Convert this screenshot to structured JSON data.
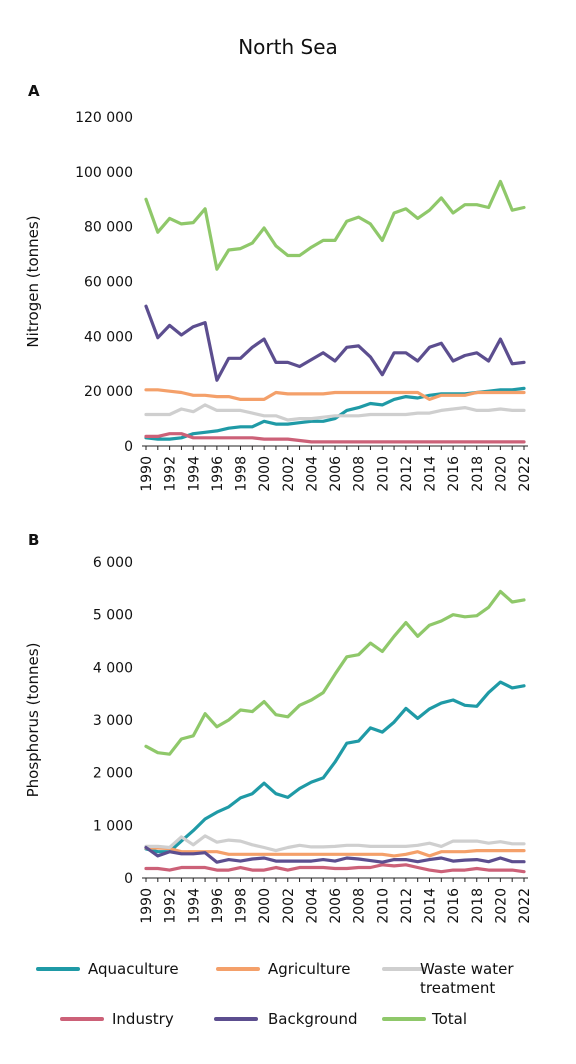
{
  "figure": {
    "title": "North Sea",
    "legend": [
      {
        "key": "aquaculture",
        "lines": [
          "Aquaculture"
        ],
        "color": "#1f9aa6"
      },
      {
        "key": "agriculture",
        "lines": [
          "Agriculture"
        ],
        "color": "#f4a06a"
      },
      {
        "key": "wastewater",
        "lines": [
          "Waste water",
          "treatment"
        ],
        "color": "#cfcfcf"
      },
      {
        "key": "industry",
        "lines": [
          "Industry"
        ],
        "color": "#cc6178"
      },
      {
        "key": "background",
        "lines": [
          "Background"
        ],
        "color": "#5c4e8f"
      },
      {
        "key": "total",
        "lines": [
          "Total"
        ],
        "color": "#8fc86a"
      }
    ]
  },
  "chart_data": [
    {
      "panel": "A",
      "type": "line",
      "ylabel": "Nitrogen (tonnes)",
      "ylim": [
        0,
        120000
      ],
      "yticks": [
        0,
        20000,
        40000,
        60000,
        80000,
        100000,
        120000
      ],
      "ytick_labels": [
        "0",
        "20 000",
        "40 000",
        "60 000",
        "80 000",
        "100 000",
        "120 000"
      ],
      "x": [
        1990,
        1991,
        1992,
        1993,
        1994,
        1995,
        1996,
        1997,
        1998,
        1999,
        2000,
        2001,
        2002,
        2003,
        2004,
        2005,
        2006,
        2007,
        2008,
        2009,
        2010,
        2011,
        2012,
        2013,
        2014,
        2015,
        2016,
        2017,
        2018,
        2019,
        2020,
        2021,
        2022
      ],
      "xtick_labels": [
        "1990",
        "1992",
        "1994",
        "1996",
        "1998",
        "2000",
        "2002",
        "2004",
        "2006",
        "2008",
        "2010",
        "2012",
        "2014",
        "2016",
        "2018",
        "2020",
        "2022"
      ],
      "series": [
        {
          "key": "aquaculture",
          "values": [
            3000,
            2500,
            2500,
            3000,
            4500,
            5000,
            5500,
            6500,
            7000,
            7000,
            9000,
            8000,
            8000,
            8500,
            9000,
            9000,
            10000,
            13000,
            14000,
            15500,
            15000,
            17000,
            18000,
            17500,
            18500,
            19000,
            19000,
            19000,
            19500,
            20000,
            20500,
            20500,
            21000
          ]
        },
        {
          "key": "agriculture",
          "values": [
            20500,
            20500,
            20000,
            19500,
            18500,
            18500,
            18000,
            18000,
            17000,
            17000,
            17000,
            19500,
            19000,
            19000,
            19000,
            19000,
            19500,
            19500,
            19500,
            19500,
            19500,
            19500,
            19500,
            19500,
            17000,
            18500,
            18500,
            18500,
            19500,
            19500,
            19500,
            19500,
            19500
          ]
        },
        {
          "key": "wastewater",
          "values": [
            11500,
            11500,
            11500,
            13500,
            12500,
            15000,
            13000,
            13000,
            13000,
            12000,
            11000,
            11000,
            9500,
            10000,
            10000,
            10500,
            11000,
            11000,
            11000,
            11500,
            11500,
            11500,
            11500,
            12000,
            12000,
            13000,
            13500,
            14000,
            13000,
            13000,
            13500,
            13000,
            13000
          ]
        },
        {
          "key": "industry",
          "values": [
            3500,
            3500,
            4500,
            4500,
            3000,
            3000,
            3000,
            3000,
            3000,
            3000,
            2500,
            2500,
            2500,
            2000,
            1500,
            1500,
            1500,
            1500,
            1500,
            1500,
            1500,
            1500,
            1500,
            1500,
            1500,
            1500,
            1500,
            1500,
            1500,
            1500,
            1500,
            1500,
            1500
          ]
        },
        {
          "key": "background",
          "values": [
            51000,
            39500,
            44000,
            40500,
            43500,
            45000,
            24000,
            32000,
            32000,
            36000,
            39000,
            30500,
            30500,
            29000,
            31500,
            34000,
            31000,
            36000,
            36500,
            32500,
            26000,
            34000,
            34000,
            31000,
            36000,
            37500,
            31000,
            33000,
            34000,
            31000,
            39000,
            30000,
            30500
          ]
        },
        {
          "key": "total",
          "values": [
            90000,
            78000,
            83000,
            81000,
            81500,
            86500,
            64500,
            71500,
            72000,
            74000,
            79500,
            73000,
            69500,
            69500,
            72500,
            75000,
            75000,
            82000,
            83500,
            81000,
            75000,
            85000,
            86500,
            83000,
            86000,
            90500,
            85000,
            88000,
            88000,
            87000,
            96500,
            86000,
            87000
          ]
        }
      ]
    },
    {
      "panel": "B",
      "type": "line",
      "ylabel": "Phosphorus (tonnes)",
      "ylim": [
        0,
        6000
      ],
      "yticks": [
        0,
        1000,
        2000,
        3000,
        4000,
        5000,
        6000
      ],
      "ytick_labels": [
        "0",
        "1 000",
        "2 000",
        "3 000",
        "4 000",
        "5 000",
        "6 000"
      ],
      "x": [
        1990,
        1991,
        1992,
        1993,
        1994,
        1995,
        1996,
        1997,
        1998,
        1999,
        2000,
        2001,
        2002,
        2003,
        2004,
        2005,
        2006,
        2007,
        2008,
        2009,
        2010,
        2011,
        2012,
        2013,
        2014,
        2015,
        2016,
        2017,
        2018,
        2019,
        2020,
        2021,
        2022
      ],
      "xtick_labels": [
        "1990",
        "1992",
        "1994",
        "1996",
        "1998",
        "2000",
        "2002",
        "2004",
        "2006",
        "2008",
        "2010",
        "2012",
        "2014",
        "2016",
        "2018",
        "2020",
        "2022"
      ],
      "series": [
        {
          "key": "aquaculture",
          "values": [
            550,
            500,
            500,
            700,
            900,
            1120,
            1250,
            1350,
            1520,
            1600,
            1800,
            1600,
            1530,
            1700,
            1820,
            1900,
            2200,
            2560,
            2600,
            2850,
            2770,
            2960,
            3220,
            3030,
            3210,
            3320,
            3380,
            3280,
            3260,
            3520,
            3720,
            3610,
            3650
          ]
        },
        {
          "key": "agriculture",
          "values": [
            570,
            570,
            560,
            500,
            500,
            500,
            500,
            450,
            450,
            450,
            450,
            450,
            450,
            450,
            450,
            450,
            450,
            450,
            450,
            450,
            450,
            420,
            450,
            500,
            420,
            500,
            500,
            500,
            520,
            520,
            520,
            520,
            520
          ]
        },
        {
          "key": "wastewater",
          "values": [
            600,
            600,
            580,
            780,
            630,
            800,
            680,
            720,
            700,
            630,
            580,
            520,
            580,
            620,
            590,
            590,
            600,
            620,
            620,
            600,
            600,
            600,
            600,
            620,
            660,
            600,
            700,
            700,
            700,
            660,
            690,
            650,
            650
          ]
        },
        {
          "key": "industry",
          "values": [
            180,
            180,
            150,
            200,
            200,
            200,
            150,
            150,
            200,
            150,
            150,
            200,
            150,
            200,
            200,
            200,
            180,
            180,
            200,
            200,
            250,
            230,
            250,
            200,
            150,
            120,
            150,
            150,
            180,
            150,
            150,
            150,
            120
          ]
        },
        {
          "key": "background",
          "values": [
            580,
            420,
            500,
            460,
            460,
            480,
            300,
            350,
            320,
            360,
            380,
            320,
            320,
            320,
            320,
            350,
            320,
            380,
            360,
            330,
            300,
            350,
            350,
            310,
            350,
            380,
            320,
            340,
            350,
            310,
            380,
            310,
            310
          ]
        },
        {
          "key": "total",
          "values": [
            2500,
            2380,
            2350,
            2640,
            2700,
            3120,
            2870,
            3000,
            3190,
            3160,
            3350,
            3100,
            3060,
            3280,
            3380,
            3520,
            3870,
            4200,
            4240,
            4460,
            4300,
            4590,
            4850,
            4590,
            4800,
            4880,
            5000,
            4960,
            4980,
            5140,
            5440,
            5240,
            5280
          ]
        }
      ]
    }
  ]
}
